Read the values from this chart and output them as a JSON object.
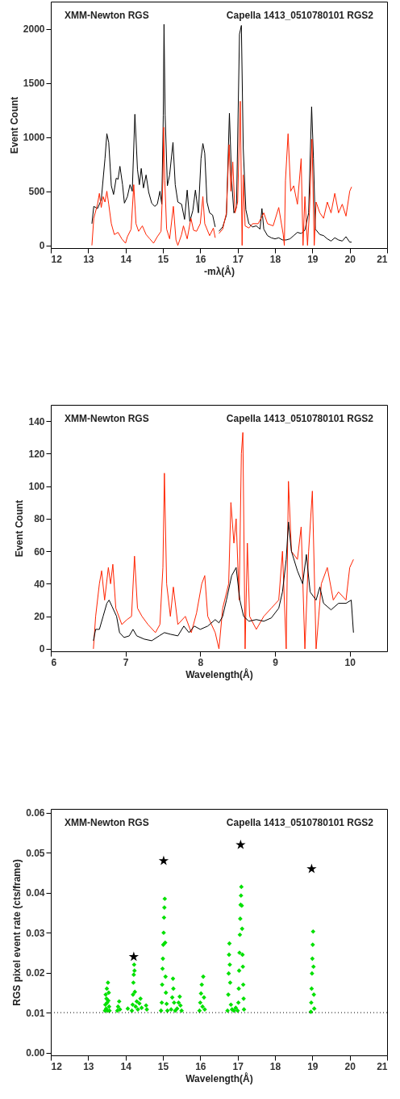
{
  "chart_data": [
    {
      "type": "line",
      "xlabel": "-mλ(Å)",
      "ylabel": "Event Count",
      "xlim": [
        12,
        21
      ],
      "xticks": [
        12,
        13,
        14,
        15,
        16,
        17,
        18,
        19,
        20,
        21
      ],
      "ylim": [
        -25,
        2250
      ],
      "yticks": [
        0,
        500,
        1000,
        1500,
        2000
      ],
      "annotations": [
        "XMM-Newton RGS",
        "Capella 1413_0510780101 RGS2"
      ],
      "series": [
        {
          "color": "#000000",
          "x": [
            13.1,
            13.15,
            13.25,
            13.35,
            13.45,
            13.5,
            13.55,
            13.62,
            13.68,
            13.75,
            13.8,
            13.85,
            13.92,
            13.97,
            14.05,
            14.12,
            14.18,
            14.25,
            14.32,
            14.37,
            14.42,
            14.48,
            14.55,
            14.62,
            14.7,
            14.78,
            14.85,
            14.92,
            14.97,
            15.01,
            15.03,
            15.06,
            15.12,
            15.18,
            15.27,
            15.33,
            15.4,
            15.5,
            15.58,
            15.65,
            15.72,
            15.8,
            15.87,
            15.95,
            16.02,
            16.07,
            16.12,
            16.18,
            16.25,
            16.33,
            16.4,
            16.45,
            16.5,
            16.6,
            16.7,
            16.78,
            16.84,
            16.9,
            16.97,
            17.05,
            17.1,
            17.15,
            17.22,
            17.3,
            17.4,
            17.5,
            17.6,
            17.65,
            17.7,
            17.8,
            17.9,
            18.0,
            18.1,
            18.2,
            18.3,
            18.4,
            18.5,
            18.6,
            18.7,
            18.8,
            18.9,
            18.98,
            19.03,
            19.08,
            19.2,
            19.3,
            19.4,
            19.5,
            19.6,
            19.7,
            19.8,
            19.9,
            20.0,
            20.05
          ],
          "values": [
            200,
            360,
            340,
            420,
            800,
            1030,
            950,
            550,
            470,
            620,
            610,
            730,
            560,
            390,
            450,
            560,
            500,
            1210,
            700,
            560,
            710,
            530,
            650,
            490,
            390,
            360,
            380,
            500,
            380,
            1200,
            2040,
            1200,
            550,
            650,
            950,
            560,
            400,
            380,
            240,
            510,
            220,
            320,
            510,
            300,
            800,
            940,
            850,
            400,
            300,
            280,
            170,
            null,
            130,
            170,
            280,
            1220,
            600,
            300,
            350,
            1950,
            2030,
            900,
            330,
            200,
            170,
            180,
            150,
            340,
            150,
            90,
            70,
            60,
            70,
            50,
            50,
            60,
            90,
            120,
            110,
            140,
            300,
            1280,
            800,
            150,
            100,
            90,
            60,
            40,
            70,
            50,
            40,
            80,
            30,
            30
          ]
        },
        {
          "color": "#ff2200",
          "x": [
            13.1,
            13.15,
            13.25,
            13.3,
            13.35,
            13.4,
            13.45,
            13.5,
            13.55,
            13.62,
            13.7,
            13.8,
            13.9,
            14.0,
            14.05,
            14.15,
            14.22,
            14.28,
            14.35,
            14.45,
            14.55,
            14.65,
            14.75,
            14.85,
            14.95,
            15.0,
            15.02,
            15.05,
            15.1,
            15.18,
            15.28,
            15.35,
            15.4,
            15.5,
            15.55,
            15.65,
            15.75,
            15.82,
            15.9,
            16.0,
            16.07,
            16.12,
            16.25,
            16.35,
            16.4,
            16.45,
            16.5,
            16.6,
            16.7,
            16.77,
            16.82,
            16.87,
            16.93,
            17.0,
            17.07,
            17.12,
            17.15,
            17.2,
            17.3,
            17.4,
            17.55,
            17.7,
            17.8,
            17.95,
            18.1,
            18.22,
            18.25,
            18.28,
            18.35,
            18.42,
            18.5,
            18.6,
            18.7,
            18.75,
            18.8,
            18.87,
            18.92,
            18.99,
            19.05,
            19.1,
            19.2,
            19.3,
            19.4,
            19.5,
            19.6,
            19.7,
            19.8,
            19.9,
            20.0,
            20.05
          ],
          "values": [
            0,
            250,
            380,
            480,
            350,
            450,
            400,
            500,
            380,
            200,
            100,
            120,
            60,
            20,
            80,
            150,
            560,
            200,
            130,
            180,
            100,
            60,
            20,
            80,
            130,
            600,
            1090,
            600,
            150,
            60,
            360,
            50,
            0,
            100,
            180,
            60,
            250,
            140,
            130,
            200,
            450,
            200,
            90,
            160,
            70,
            null,
            110,
            150,
            300,
            930,
            500,
            770,
            300,
            400,
            1330,
            0,
            650,
            180,
            160,
            200,
            200,
            300,
            200,
            180,
            350,
            100,
            0,
            600,
            1030,
            500,
            550,
            380,
            800,
            0,
            450,
            0,
            300,
            980,
            0,
            400,
            300,
            250,
            400,
            300,
            480,
            300,
            380,
            270,
            500,
            540
          ]
        }
      ]
    },
    {
      "type": "line",
      "xlabel": "Wavelength(Å)",
      "ylabel": "Event Count",
      "xlim": [
        6,
        10.5
      ],
      "xticks": [
        6,
        7,
        8,
        9,
        10
      ],
      "ylim": [
        -1.5,
        150
      ],
      "yticks": [
        0,
        20,
        40,
        60,
        80,
        100,
        120,
        140
      ],
      "annotations": [
        "XMM-Newton RGS",
        "Capella 1413_0510780101 RGS2"
      ],
      "series": [
        {
          "color": "#ff2200",
          "x": [
            6.57,
            6.6,
            6.65,
            6.68,
            6.72,
            6.77,
            6.8,
            6.83,
            6.87,
            6.95,
            7.02,
            7.08,
            7.12,
            7.16,
            7.22,
            7.3,
            7.4,
            7.46,
            7.5,
            7.52,
            7.55,
            7.6,
            7.64,
            7.7,
            7.8,
            7.88,
            7.95,
            8.02,
            8.06,
            8.1,
            8.2,
            8.25,
            8.3,
            8.38,
            8.41,
            8.45,
            8.48,
            8.52,
            8.55,
            8.57,
            8.6,
            8.63,
            8.66,
            8.75,
            8.85,
            8.95,
            9.05,
            9.1,
            9.15,
            9.18,
            9.22,
            9.3,
            9.35,
            9.4,
            9.45,
            9.5,
            9.55,
            9.62,
            9.7,
            9.78,
            9.85,
            9.95,
            10.0,
            10.05
          ],
          "values": [
            0,
            20,
            40,
            48,
            30,
            50,
            40,
            52,
            25,
            15,
            18,
            20,
            57,
            25,
            20,
            15,
            10,
            15,
            50,
            108,
            40,
            20,
            38,
            15,
            20,
            10,
            22,
            40,
            45,
            20,
            10,
            0,
            25,
            40,
            90,
            65,
            80,
            30,
            120,
            133,
            0,
            65,
            20,
            12,
            20,
            25,
            30,
            60,
            0,
            103,
            60,
            55,
            75,
            0,
            60,
            97,
            0,
            40,
            50,
            30,
            35,
            30,
            50,
            55
          ]
        },
        {
          "color": "#000000",
          "x": [
            6.57,
            6.6,
            6.65,
            6.7,
            6.75,
            6.78,
            6.82,
            6.88,
            6.92,
            6.98,
            7.05,
            7.1,
            7.15,
            7.25,
            7.35,
            7.45,
            7.52,
            7.6,
            7.7,
            7.78,
            7.85,
            7.92,
            8.0,
            8.1,
            8.2,
            8.25,
            8.3,
            8.35,
            8.42,
            8.48,
            8.53,
            8.58,
            8.65,
            8.75,
            8.85,
            8.95,
            9.05,
            9.1,
            9.15,
            9.18,
            9.22,
            9.3,
            9.37,
            9.42,
            9.47,
            9.55,
            9.6,
            9.65,
            9.75,
            9.85,
            9.95,
            10.02,
            10.05
          ],
          "values": [
            5,
            12,
            12,
            20,
            28,
            30,
            26,
            20,
            10,
            7,
            8,
            12,
            8,
            6,
            5,
            8,
            10,
            9,
            8,
            14,
            10,
            14,
            12,
            14,
            18,
            16,
            20,
            30,
            45,
            50,
            30,
            20,
            17,
            18,
            17,
            19,
            25,
            35,
            55,
            78,
            60,
            48,
            40,
            58,
            35,
            30,
            38,
            28,
            24,
            28,
            28,
            30,
            10
          ]
        }
      ]
    },
    {
      "type": "scatter",
      "xlabel": "Wavelength(Å)",
      "ylabel": "RGS pixel event rate (cts/frame)",
      "xlim": [
        12,
        21
      ],
      "xticks": [
        12,
        13,
        14,
        15,
        16,
        17,
        18,
        19,
        20,
        21
      ],
      "ylim": [
        -0.0007,
        0.061
      ],
      "yticks": [
        {
          "value": 0,
          "label": "0.00"
        },
        {
          "value": 0.01,
          "label": "0.01"
        },
        {
          "value": 0.02,
          "label": "0.02"
        },
        {
          "value": 0.03,
          "label": "0.03"
        },
        {
          "value": 0.04,
          "label": "0.04"
        },
        {
          "value": 0.05,
          "label": "0.05"
        },
        {
          "value": 0.06,
          "label": "0.06"
        }
      ],
      "annotations": [
        "XMM-Newton RGS",
        "Capella 1413_0510780101 RGS2"
      ],
      "ref_lines": [
        {
          "axis": "y",
          "value": 0.01,
          "color": "#000000",
          "line_style": "dotted"
        }
      ],
      "series": [
        {
          "color": "#00e000",
          "marker": "diamond",
          "x": [
            13.45,
            13.46,
            13.47,
            13.48,
            13.49,
            13.5,
            13.51,
            13.52,
            13.53,
            13.54,
            13.55,
            13.56,
            13.57,
            13.78,
            13.8,
            13.83,
            13.85,
            14.06,
            14.17,
            14.19,
            14.2,
            14.21,
            14.22,
            14.23,
            14.24,
            14.25,
            14.27,
            14.3,
            14.33,
            14.37,
            14.4,
            14.43,
            14.55,
            14.57,
            14.95,
            14.97,
            14.98,
            14.99,
            15.0,
            15.01,
            15.02,
            15.03,
            15.04,
            15.05,
            15.06,
            15.07,
            15.08,
            15.1,
            15.12,
            15.22,
            15.25,
            15.27,
            15.28,
            15.3,
            15.33,
            15.38,
            15.42,
            15.45,
            15.47,
            15.5,
            15.98,
            16.0,
            16.02,
            16.04,
            16.06,
            16.08,
            16.1,
            16.12,
            16.73,
            16.75,
            16.76,
            16.77,
            16.78,
            16.79,
            16.8,
            16.82,
            16.85,
            16.9,
            16.95,
            17.0,
            17.02,
            17.03,
            17.04,
            17.05,
            17.06,
            17.07,
            17.08,
            17.09,
            17.1,
            17.11,
            17.12,
            17.13,
            17.14,
            17.15,
            17.16,
            17.17,
            18.96,
            18.97,
            18.98,
            18.99,
            19.0,
            19.01,
            19.02,
            19.03,
            19.04,
            19.05
          ],
          "values": [
            0.0105,
            0.012,
            0.0145,
            0.011,
            0.0135,
            0.016,
            0.0125,
            0.0105,
            0.0175,
            0.013,
            0.015,
            0.0115,
            0.0105,
            0.0105,
            0.0115,
            0.0128,
            0.0108,
            0.011,
            0.0105,
            0.012,
            0.0145,
            0.0175,
            0.0195,
            0.022,
            0.0205,
            0.0152,
            0.0115,
            0.0128,
            0.0108,
            0.0123,
            0.0135,
            0.0112,
            0.0118,
            0.0108,
            0.0105,
            0.0125,
            0.017,
            0.021,
            0.0235,
            0.027,
            0.03,
            0.0338,
            0.0363,
            0.0385,
            0.0275,
            0.019,
            0.015,
            0.0122,
            0.0105,
            0.0108,
            0.0138,
            0.0185,
            0.016,
            0.0125,
            0.0105,
            0.011,
            0.0125,
            0.014,
            0.0118,
            0.0105,
            0.0105,
            0.0125,
            0.0148,
            0.017,
            0.0115,
            0.019,
            0.0138,
            0.0108,
            0.0105,
            0.0145,
            0.0198,
            0.0245,
            0.0273,
            0.022,
            0.0175,
            0.012,
            0.0108,
            0.0105,
            0.0112,
            0.0105,
            0.0125,
            0.016,
            0.0205,
            0.025,
            0.0295,
            0.0335,
            0.037,
            0.0393,
            0.0415,
            0.0368,
            0.031,
            0.0245,
            0.0215,
            0.017,
            0.0135,
            0.0108,
            0.0102,
            0.0125,
            0.016,
            0.0198,
            0.0235,
            0.027,
            0.0303,
            0.0215,
            0.0145,
            0.011
          ]
        },
        {
          "color": "#000000",
          "marker": "star",
          "x": [
            14.22,
            15.02,
            17.08,
            18.98
          ],
          "values": [
            0.024,
            0.048,
            0.052,
            0.046
          ]
        }
      ]
    }
  ]
}
